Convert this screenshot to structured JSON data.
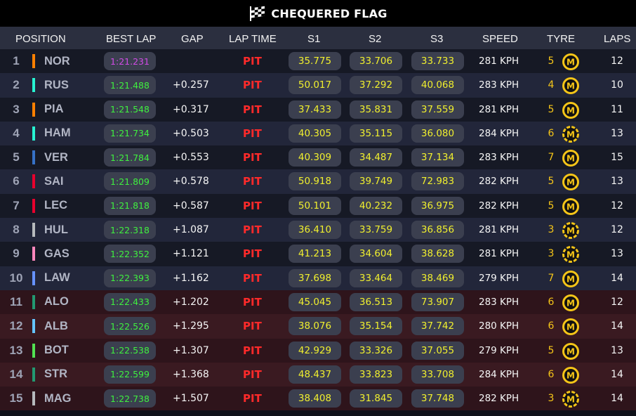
{
  "banner": {
    "title": "CHEQUERED FLAG",
    "icon": "chequered-flag-icon"
  },
  "columns": {
    "position": "POSITION",
    "best_lap": "BEST LAP",
    "gap": "GAP",
    "lap_time": "LAP TIME",
    "s1": "S1",
    "s2": "S2",
    "s3": "S3",
    "speed": "SPEED",
    "tyre": "TYRE",
    "laps": "LAPS"
  },
  "colors": {
    "fastest_lap": "#d24be6",
    "best_lap": "#3ff03f",
    "sector": "#f0ef2e",
    "pit": "#ff2a2a",
    "tyre_medium": "#f5c518"
  },
  "rows": [
    {
      "pos": "1",
      "driver": "NOR",
      "team_color": "#ff8000",
      "best_lap": "1:21.231",
      "fastest": true,
      "gap": "",
      "lap_time": "PIT",
      "s1": "35.775",
      "s2": "33.706",
      "s3": "33.733",
      "speed": "281 KPH",
      "tyre_age": "5",
      "tyre": "M",
      "tyre_style": "new",
      "laps": "12"
    },
    {
      "pos": "2",
      "driver": "RUS",
      "team_color": "#27f4d2",
      "best_lap": "1:21.488",
      "gap": "+0.257",
      "lap_time": "PIT",
      "s1": "50.017",
      "s2": "37.292",
      "s3": "40.068",
      "speed": "283 KPH",
      "tyre_age": "4",
      "tyre": "M",
      "tyre_style": "new",
      "laps": "10"
    },
    {
      "pos": "3",
      "driver": "PIA",
      "team_color": "#ff8000",
      "best_lap": "1:21.548",
      "gap": "+0.317",
      "lap_time": "PIT",
      "s1": "37.433",
      "s2": "35.831",
      "s3": "37.559",
      "speed": "281 KPH",
      "tyre_age": "5",
      "tyre": "M",
      "tyre_style": "new",
      "laps": "11"
    },
    {
      "pos": "4",
      "driver": "HAM",
      "team_color": "#27f4d2",
      "best_lap": "1:21.734",
      "gap": "+0.503",
      "lap_time": "PIT",
      "s1": "40.305",
      "s2": "35.115",
      "s3": "36.080",
      "speed": "284 KPH",
      "tyre_age": "6",
      "tyre": "M",
      "tyre_style": "used",
      "laps": "13"
    },
    {
      "pos": "5",
      "driver": "VER",
      "team_color": "#3671c6",
      "best_lap": "1:21.784",
      "gap": "+0.553",
      "lap_time": "PIT",
      "s1": "40.309",
      "s2": "34.487",
      "s3": "37.134",
      "speed": "283 KPH",
      "tyre_age": "7",
      "tyre": "M",
      "tyre_style": "new",
      "laps": "15"
    },
    {
      "pos": "6",
      "driver": "SAI",
      "team_color": "#e8002d",
      "best_lap": "1:21.809",
      "gap": "+0.578",
      "lap_time": "PIT",
      "s1": "50.918",
      "s2": "39.749",
      "s3": "72.983",
      "speed": "282 KPH",
      "tyre_age": "5",
      "tyre": "M",
      "tyre_style": "new",
      "laps": "13"
    },
    {
      "pos": "7",
      "driver": "LEC",
      "team_color": "#e8002d",
      "best_lap": "1:21.818",
      "gap": "+0.587",
      "lap_time": "PIT",
      "s1": "50.101",
      "s2": "40.232",
      "s3": "36.975",
      "speed": "282 KPH",
      "tyre_age": "5",
      "tyre": "M",
      "tyre_style": "new",
      "laps": "12"
    },
    {
      "pos": "8",
      "driver": "HUL",
      "team_color": "#b6babd",
      "best_lap": "1:22.318",
      "gap": "+1.087",
      "lap_time": "PIT",
      "s1": "36.410",
      "s2": "33.759",
      "s3": "36.856",
      "speed": "281 KPH",
      "tyre_age": "3",
      "tyre": "M",
      "tyre_style": "used",
      "laps": "12"
    },
    {
      "pos": "9",
      "driver": "GAS",
      "team_color": "#ff87bc",
      "best_lap": "1:22.352",
      "gap": "+1.121",
      "lap_time": "PIT",
      "s1": "41.213",
      "s2": "34.604",
      "s3": "38.628",
      "speed": "281 KPH",
      "tyre_age": "3",
      "tyre": "M",
      "tyre_style": "used",
      "laps": "13"
    },
    {
      "pos": "10",
      "driver": "LAW",
      "team_color": "#6692ff",
      "best_lap": "1:22.393",
      "gap": "+1.162",
      "lap_time": "PIT",
      "s1": "37.698",
      "s2": "33.464",
      "s3": "38.469",
      "speed": "279 KPH",
      "tyre_age": "7",
      "tyre": "M",
      "tyre_style": "new",
      "laps": "14"
    },
    {
      "pos": "11",
      "driver": "ALO",
      "team_color": "#229971",
      "best_lap": "1:22.433",
      "gap": "+1.202",
      "lap_time": "PIT",
      "s1": "45.045",
      "s2": "36.513",
      "s3": "73.907",
      "speed": "283 KPH",
      "tyre_age": "6",
      "tyre": "M",
      "tyre_style": "new",
      "laps": "12"
    },
    {
      "pos": "12",
      "driver": "ALB",
      "team_color": "#64c4ff",
      "best_lap": "1:22.526",
      "gap": "+1.295",
      "lap_time": "PIT",
      "s1": "38.076",
      "s2": "35.154",
      "s3": "37.742",
      "speed": "280 KPH",
      "tyre_age": "6",
      "tyre": "M",
      "tyre_style": "new",
      "laps": "14"
    },
    {
      "pos": "13",
      "driver": "BOT",
      "team_color": "#52e252",
      "best_lap": "1:22.538",
      "gap": "+1.307",
      "lap_time": "PIT",
      "s1": "42.929",
      "s2": "33.326",
      "s3": "37.055",
      "speed": "279 KPH",
      "tyre_age": "5",
      "tyre": "M",
      "tyre_style": "new",
      "laps": "13"
    },
    {
      "pos": "14",
      "driver": "STR",
      "team_color": "#229971",
      "best_lap": "1:22.599",
      "gap": "+1.368",
      "lap_time": "PIT",
      "s1": "48.437",
      "s2": "33.823",
      "s3": "33.708",
      "speed": "284 KPH",
      "tyre_age": "6",
      "tyre": "M",
      "tyre_style": "new",
      "laps": "14"
    },
    {
      "pos": "15",
      "driver": "MAG",
      "team_color": "#b6babd",
      "best_lap": "1:22.738",
      "gap": "+1.507",
      "lap_time": "PIT",
      "s1": "38.408",
      "s2": "31.845",
      "s3": "37.748",
      "speed": "282 KPH",
      "tyre_age": "3",
      "tyre": "M",
      "tyre_style": "used",
      "laps": "14"
    }
  ]
}
